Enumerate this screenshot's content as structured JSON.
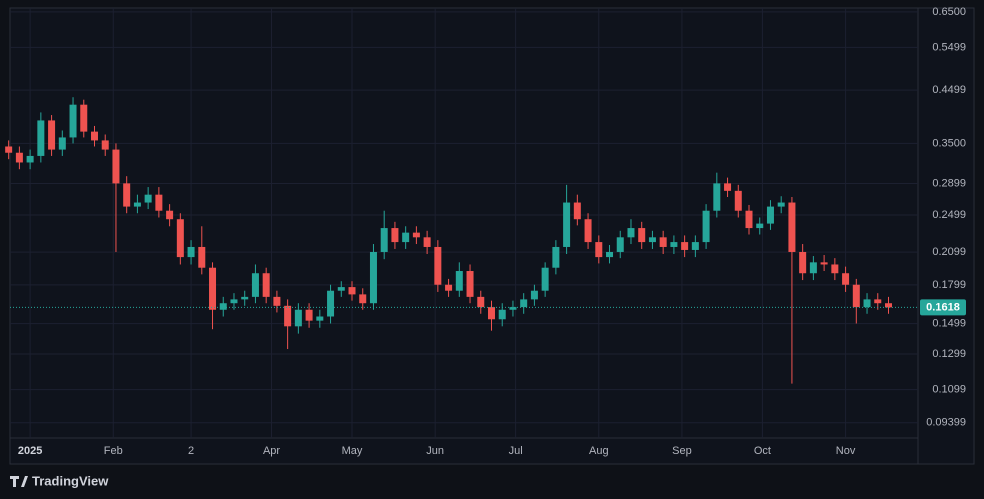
{
  "chart_data": {
    "type": "candlestick",
    "log_scale": true,
    "grid": true,
    "up_color": "#26a69a",
    "down_color": "#ef5350",
    "branding": "TradingView",
    "last_price": 0.1618,
    "x": [
      -8,
      -4,
      0,
      4,
      8,
      12,
      16,
      20,
      24,
      28,
      32,
      36,
      40,
      44,
      48,
      52,
      56,
      60,
      64,
      68,
      72,
      76,
      80,
      84,
      88,
      92,
      96,
      100,
      104,
      108,
      112,
      116,
      120,
      124,
      128,
      132,
      136,
      140,
      144,
      148,
      152,
      156,
      160,
      164,
      168,
      172,
      176,
      180,
      184,
      188,
      192,
      196,
      200,
      204,
      208,
      212,
      216,
      220,
      224,
      228,
      232,
      236,
      240,
      244,
      248,
      252,
      256,
      260,
      264,
      268,
      272,
      276,
      280,
      284,
      288,
      292,
      296,
      300,
      304,
      308,
      312,
      316,
      320
    ],
    "open": [
      0.345,
      0.335,
      0.32,
      0.33,
      0.39,
      0.34,
      0.36,
      0.42,
      0.37,
      0.355,
      0.34,
      0.29,
      0.26,
      0.265,
      0.275,
      0.255,
      0.245,
      0.205,
      0.215,
      0.195,
      0.16,
      0.165,
      0.168,
      0.17,
      0.19,
      0.17,
      0.163,
      0.148,
      0.16,
      0.152,
      0.155,
      0.175,
      0.178,
      0.172,
      0.165,
      0.21,
      0.235,
      0.22,
      0.23,
      0.225,
      0.215,
      0.18,
      0.175,
      0.192,
      0.17,
      0.162,
      0.153,
      0.16,
      0.162,
      0.168,
      0.175,
      0.195,
      0.215,
      0.265,
      0.245,
      0.22,
      0.205,
      0.21,
      0.225,
      0.235,
      0.22,
      0.225,
      0.215,
      0.22,
      0.212,
      0.22,
      0.255,
      0.29,
      0.28,
      0.255,
      0.235,
      0.24,
      0.26,
      0.265,
      0.21,
      0.19,
      0.2,
      0.198,
      0.19,
      0.18,
      0.162,
      0.168,
      0.165
    ],
    "high": [
      0.355,
      0.345,
      0.34,
      0.405,
      0.4,
      0.372,
      0.435,
      0.43,
      0.38,
      0.365,
      0.35,
      0.3,
      0.275,
      0.285,
      0.285,
      0.263,
      0.252,
      0.222,
      0.237,
      0.2,
      0.17,
      0.173,
      0.175,
      0.198,
      0.195,
      0.175,
      0.168,
      0.165,
      0.165,
      0.16,
      0.18,
      0.183,
      0.183,
      0.177,
      0.218,
      0.255,
      0.242,
      0.237,
      0.237,
      0.232,
      0.222,
      0.185,
      0.2,
      0.198,
      0.175,
      0.167,
      0.165,
      0.167,
      0.173,
      0.18,
      0.2,
      0.222,
      0.288,
      0.275,
      0.252,
      0.227,
      0.217,
      0.232,
      0.245,
      0.242,
      0.232,
      0.232,
      0.227,
      0.227,
      0.227,
      0.263,
      0.305,
      0.298,
      0.288,
      0.262,
      0.247,
      0.268,
      0.273,
      0.272,
      0.218,
      0.206,
      0.207,
      0.204,
      0.196,
      0.185,
      0.173,
      0.173,
      0.17
    ],
    "low": [
      0.325,
      0.31,
      0.31,
      0.32,
      0.33,
      0.33,
      0.35,
      0.36,
      0.345,
      0.33,
      0.21,
      0.252,
      0.252,
      0.257,
      0.247,
      0.237,
      0.198,
      0.198,
      0.189,
      0.146,
      0.155,
      0.16,
      0.163,
      0.165,
      0.165,
      0.158,
      0.133,
      0.143,
      0.147,
      0.147,
      0.15,
      0.17,
      0.167,
      0.16,
      0.16,
      0.203,
      0.213,
      0.213,
      0.218,
      0.208,
      0.174,
      0.17,
      0.17,
      0.165,
      0.157,
      0.145,
      0.148,
      0.155,
      0.157,
      0.163,
      0.17,
      0.189,
      0.208,
      0.238,
      0.213,
      0.199,
      0.199,
      0.204,
      0.218,
      0.213,
      0.213,
      0.208,
      0.208,
      0.205,
      0.205,
      0.213,
      0.247,
      0.272,
      0.247,
      0.228,
      0.228,
      0.233,
      0.252,
      0.113,
      0.184,
      0.184,
      0.192,
      0.184,
      0.174,
      0.15,
      0.157,
      0.16,
      0.157
    ],
    "close": [
      0.335,
      0.32,
      0.33,
      0.39,
      0.34,
      0.36,
      0.42,
      0.37,
      0.355,
      0.34,
      0.29,
      0.26,
      0.265,
      0.275,
      0.255,
      0.245,
      0.205,
      0.215,
      0.195,
      0.16,
      0.165,
      0.168,
      0.17,
      0.19,
      0.17,
      0.163,
      0.148,
      0.16,
      0.152,
      0.155,
      0.175,
      0.178,
      0.172,
      0.165,
      0.21,
      0.235,
      0.22,
      0.23,
      0.225,
      0.215,
      0.18,
      0.175,
      0.192,
      0.17,
      0.162,
      0.153,
      0.16,
      0.162,
      0.168,
      0.175,
      0.195,
      0.215,
      0.265,
      0.245,
      0.22,
      0.205,
      0.21,
      0.225,
      0.235,
      0.22,
      0.225,
      0.215,
      0.22,
      0.212,
      0.22,
      0.255,
      0.29,
      0.28,
      0.255,
      0.235,
      0.24,
      0.26,
      0.265,
      0.21,
      0.19,
      0.2,
      0.198,
      0.19,
      0.18,
      0.162,
      0.168,
      0.165,
      0.1618
    ],
    "xlim": [
      -7.5,
      331
    ],
    "xticks": [
      {
        "value": 0,
        "label": "2025"
      },
      {
        "value": 31,
        "label": "Feb"
      },
      {
        "value": 60,
        "label": "2"
      },
      {
        "value": 90,
        "label": "Apr"
      },
      {
        "value": 120,
        "label": "May"
      },
      {
        "value": 151,
        "label": "Jun"
      },
      {
        "value": 181,
        "label": "Jul"
      },
      {
        "value": 212,
        "label": "Aug"
      },
      {
        "value": 243,
        "label": "Sep"
      },
      {
        "value": 273,
        "label": "Oct"
      },
      {
        "value": 304,
        "label": "Nov"
      }
    ],
    "ylim": [
      0.0875,
      0.662
    ],
    "yticks": [
      {
        "value": 0.65,
        "label": "0.6500"
      },
      0.5499,
      0.4499,
      {
        "value": 0.35,
        "label": "0.3500"
      },
      0.2899,
      0.2499,
      0.2099,
      0.1799,
      0.1499,
      0.1299,
      0.1099,
      0.09399
    ]
  }
}
